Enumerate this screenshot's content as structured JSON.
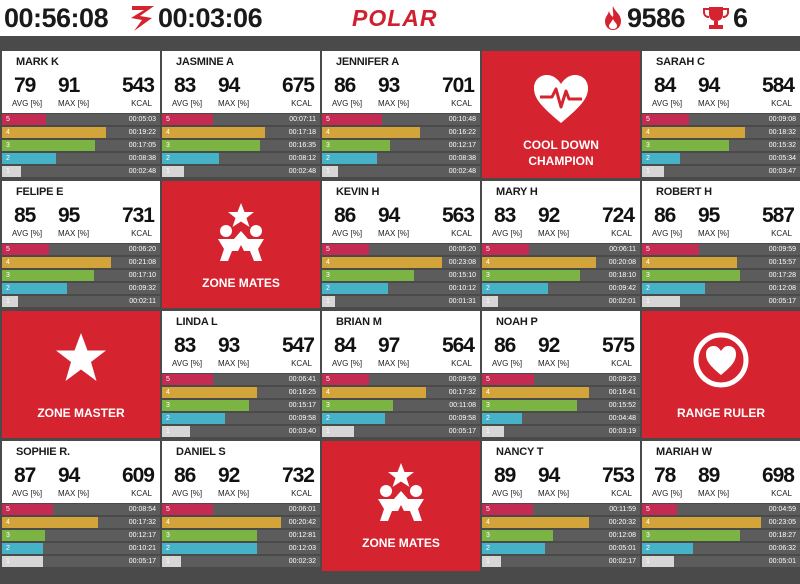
{
  "header": {
    "elapsed_time": "00:56:08",
    "remaining_time": "00:03:06",
    "brand": "POLAR",
    "total_calories": "9586",
    "trophies": "6"
  },
  "labels": {
    "avg": "AVG [%]",
    "max": "MAX [%]",
    "kcal": "KCAL"
  },
  "zone_colors": [
    "#d6d6d6",
    "#45b2c8",
    "#7bb443",
    "#d3a43a",
    "#c42b52"
  ],
  "participants": [
    {
      "name": "MARK K",
      "avg": "79",
      "max": "91",
      "kcal": "543",
      "zones": [
        {
          "zone": "5",
          "time": "00:05:03",
          "fill": 0.28
        },
        {
          "zone": "4",
          "time": "00:19:22",
          "fill": 0.66
        },
        {
          "zone": "3",
          "time": "00:17:05",
          "fill": 0.59
        },
        {
          "zone": "2",
          "time": "00:08:38",
          "fill": 0.34
        },
        {
          "zone": "1",
          "time": "00:02:48",
          "fill": 0.12
        }
      ]
    },
    {
      "name": "JASMINE A",
      "avg": "83",
      "max": "94",
      "kcal": "675",
      "zones": [
        {
          "zone": "5",
          "time": "00:07:11",
          "fill": 0.32
        },
        {
          "zone": "4",
          "time": "00:17:18",
          "fill": 0.65
        },
        {
          "zone": "3",
          "time": "00:16:35",
          "fill": 0.62
        },
        {
          "zone": "2",
          "time": "00:08:12",
          "fill": 0.36
        },
        {
          "zone": "1",
          "time": "00:02:48",
          "fill": 0.14
        }
      ]
    },
    {
      "name": "JENNIFER A",
      "avg": "86",
      "max": "93",
      "kcal": "701",
      "zones": [
        {
          "zone": "5",
          "time": "00:10:48",
          "fill": 0.38
        },
        {
          "zone": "4",
          "time": "00:16:22",
          "fill": 0.62
        },
        {
          "zone": "3",
          "time": "00:12:17",
          "fill": 0.43
        },
        {
          "zone": "2",
          "time": "00:08:38",
          "fill": 0.35
        },
        {
          "zone": "1",
          "time": "00:02:48",
          "fill": 0.1
        }
      ]
    },
    {
      "name": "SARAH C",
      "avg": "84",
      "max": "94",
      "kcal": "584",
      "zones": [
        {
          "zone": "5",
          "time": "00:09:08",
          "fill": 0.3
        },
        {
          "zone": "4",
          "time": "00:18:32",
          "fill": 0.65
        },
        {
          "zone": "3",
          "time": "00:15:32",
          "fill": 0.55
        },
        {
          "zone": "2",
          "time": "00:05:34",
          "fill": 0.24
        },
        {
          "zone": "1",
          "time": "00:03:47",
          "fill": 0.14
        }
      ]
    },
    {
      "name": "FELIPE E",
      "avg": "85",
      "max": "95",
      "kcal": "731",
      "zones": [
        {
          "zone": "5",
          "time": "00:06:20",
          "fill": 0.3
        },
        {
          "zone": "4",
          "time": "00:21:08",
          "fill": 0.69
        },
        {
          "zone": "3",
          "time": "00:17:10",
          "fill": 0.58
        },
        {
          "zone": "2",
          "time": "00:09:32",
          "fill": 0.41
        },
        {
          "zone": "1",
          "time": "00:02:11",
          "fill": 0.1
        }
      ]
    },
    {
      "name": "KEVIN H",
      "avg": "86",
      "max": "94",
      "kcal": "563",
      "zones": [
        {
          "zone": "5",
          "time": "00:05:20",
          "fill": 0.3
        },
        {
          "zone": "4",
          "time": "00:23:08",
          "fill": 0.76
        },
        {
          "zone": "3",
          "time": "00:15:10",
          "fill": 0.58
        },
        {
          "zone": "2",
          "time": "00:10:12",
          "fill": 0.42
        },
        {
          "zone": "1",
          "time": "00:01:31",
          "fill": 0.08
        }
      ]
    },
    {
      "name": "MARY H",
      "avg": "83",
      "max": "92",
      "kcal": "724",
      "zones": [
        {
          "zone": "5",
          "time": "00:06:11",
          "fill": 0.3
        },
        {
          "zone": "4",
          "time": "00:20:08",
          "fill": 0.72
        },
        {
          "zone": "3",
          "time": "00:18:10",
          "fill": 0.62
        },
        {
          "zone": "2",
          "time": "00:09:42",
          "fill": 0.42
        },
        {
          "zone": "1",
          "time": "00:02:01",
          "fill": 0.1
        }
      ]
    },
    {
      "name": "ROBERT H",
      "avg": "86",
      "max": "95",
      "kcal": "587",
      "zones": [
        {
          "zone": "5",
          "time": "00:09:59",
          "fill": 0.36
        },
        {
          "zone": "4",
          "time": "00:15:57",
          "fill": 0.6
        },
        {
          "zone": "3",
          "time": "00:17:28",
          "fill": 0.62
        },
        {
          "zone": "2",
          "time": "00:12:08",
          "fill": 0.4
        },
        {
          "zone": "1",
          "time": "00:05:17",
          "fill": 0.24
        }
      ]
    },
    {
      "name": "LINDA L",
      "avg": "83",
      "max": "93",
      "kcal": "547",
      "zones": [
        {
          "zone": "5",
          "time": "00:06:41",
          "fill": 0.32
        },
        {
          "zone": "4",
          "time": "00:16:25",
          "fill": 0.6
        },
        {
          "zone": "3",
          "time": "00:15:17",
          "fill": 0.55
        },
        {
          "zone": "2",
          "time": "00:09:58",
          "fill": 0.4
        },
        {
          "zone": "1",
          "time": "00:03:40",
          "fill": 0.18
        }
      ]
    },
    {
      "name": "BRIAN M",
      "avg": "84",
      "max": "97",
      "kcal": "564",
      "zones": [
        {
          "zone": "5",
          "time": "00:09:59",
          "fill": 0.3
        },
        {
          "zone": "4",
          "time": "00:17:32",
          "fill": 0.66
        },
        {
          "zone": "3",
          "time": "00:11:08",
          "fill": 0.45
        },
        {
          "zone": "2",
          "time": "00:09:58",
          "fill": 0.4
        },
        {
          "zone": "1",
          "time": "00:05:17",
          "fill": 0.2
        }
      ]
    },
    {
      "name": "NOAH P",
      "avg": "86",
      "max": "92",
      "kcal": "575",
      "zones": [
        {
          "zone": "5",
          "time": "00:09:23",
          "fill": 0.33
        },
        {
          "zone": "4",
          "time": "00:16:41",
          "fill": 0.68
        },
        {
          "zone": "3",
          "time": "00:15:52",
          "fill": 0.6
        },
        {
          "zone": "2",
          "time": "00:04:48",
          "fill": 0.25
        },
        {
          "zone": "1",
          "time": "00:03:19",
          "fill": 0.14
        }
      ]
    },
    {
      "name": "SOPHIE R.",
      "avg": "87",
      "max": "94",
      "kcal": "609",
      "zones": [
        {
          "zone": "5",
          "time": "00:08:54",
          "fill": 0.32
        },
        {
          "zone": "4",
          "time": "00:17:32",
          "fill": 0.61
        },
        {
          "zone": "3",
          "time": "00:12:17",
          "fill": 0.27
        },
        {
          "zone": "2",
          "time": "00:10:21",
          "fill": 0.26
        },
        {
          "zone": "1",
          "time": "00:05:17",
          "fill": 0.26
        }
      ]
    },
    {
      "name": "DANIEL S",
      "avg": "86",
      "max": "92",
      "kcal": "732",
      "zones": [
        {
          "zone": "5",
          "time": "00:06:01",
          "fill": 0.32
        },
        {
          "zone": "4",
          "time": "00:20:42",
          "fill": 0.75
        },
        {
          "zone": "3",
          "time": "00:12:81",
          "fill": 0.6
        },
        {
          "zone": "2",
          "time": "00:12:03",
          "fill": 0.6
        },
        {
          "zone": "1",
          "time": "00:02:32",
          "fill": 0.12
        }
      ]
    },
    {
      "name": "NANCY T",
      "avg": "89",
      "max": "94",
      "kcal": "753",
      "zones": [
        {
          "zone": "5",
          "time": "00:11:59",
          "fill": 0.32
        },
        {
          "zone": "4",
          "time": "00:20:32",
          "fill": 0.68
        },
        {
          "zone": "3",
          "time": "00:12:08",
          "fill": 0.45
        },
        {
          "zone": "2",
          "time": "00:05:01",
          "fill": 0.4
        },
        {
          "zone": "1",
          "time": "00:02:17",
          "fill": 0.12
        }
      ]
    },
    {
      "name": "MARIAH W",
      "avg": "78",
      "max": "89",
      "kcal": "698",
      "zones": [
        {
          "zone": "5",
          "time": "00:04:59",
          "fill": 0.22
        },
        {
          "zone": "4",
          "time": "00:23:05",
          "fill": 0.75
        },
        {
          "zone": "3",
          "time": "00:18:27",
          "fill": 0.62
        },
        {
          "zone": "2",
          "time": "00:06:32",
          "fill": 0.32
        },
        {
          "zone": "1",
          "time": "00:05:01",
          "fill": 0.2
        }
      ]
    }
  ],
  "awards": {
    "cool_down": {
      "line1": "COOL DOWN",
      "line2": "CHAMPION",
      "icon": "heart-pulse-icon"
    },
    "zone_mates_1": {
      "label": "ZONE MATES",
      "icon": "zone-mates-icon"
    },
    "zone_master": {
      "label": "ZONE MASTER",
      "icon": "star-icon"
    },
    "range_ruler": {
      "label": "RANGE RULER",
      "icon": "heart-circle-icon"
    },
    "zone_mates_2": {
      "label": "ZONE MATES",
      "icon": "zone-mates-icon"
    }
  }
}
